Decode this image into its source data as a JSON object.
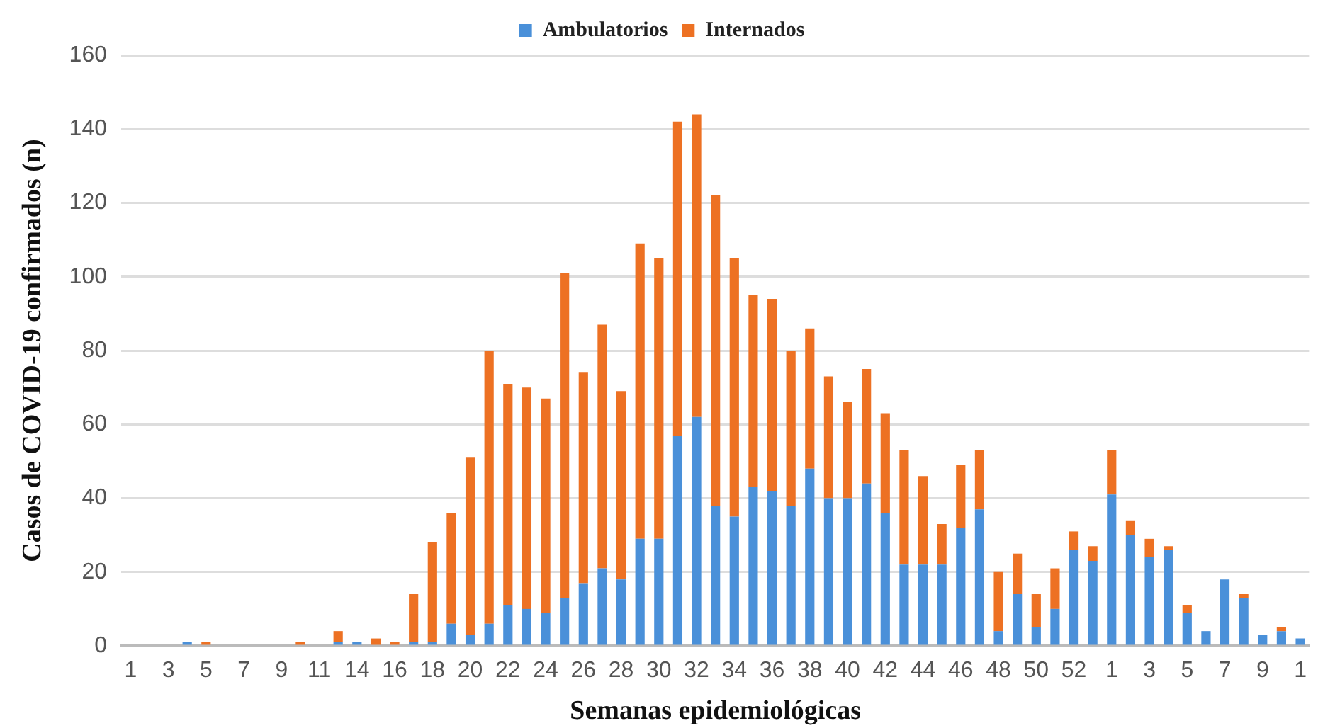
{
  "chart_data": {
    "type": "bar",
    "stacked": true,
    "xlabel": "Semanas epidemiológicas",
    "ylabel": "Casos de COVID-19 confirmados (n)",
    "categories": [
      "1",
      null,
      "3",
      null,
      "5",
      null,
      "7",
      null,
      "9",
      null,
      "11",
      null,
      "14",
      null,
      "16",
      null,
      "18",
      null,
      "20",
      null,
      "22",
      null,
      "24",
      null,
      "26",
      null,
      "28",
      null,
      "30",
      null,
      "32",
      null,
      "34",
      null,
      "36",
      null,
      "38",
      null,
      "40",
      null,
      "42",
      null,
      "44",
      null,
      "46",
      null,
      "48",
      null,
      "50",
      null,
      "52",
      null,
      "1",
      null,
      "3",
      null,
      "5",
      null,
      "7",
      null,
      "9",
      null,
      "1"
    ],
    "series": [
      {
        "name": "Ambulatorios",
        "color": "#4a90d9",
        "values": [
          0,
          0,
          0,
          1,
          0,
          0,
          0,
          0,
          0,
          0,
          0,
          1,
          1,
          0,
          0,
          1,
          1,
          6,
          3,
          6,
          11,
          10,
          9,
          13,
          17,
          21,
          18,
          29,
          29,
          57,
          62,
          38,
          35,
          43,
          42,
          38,
          48,
          40,
          40,
          44,
          36,
          22,
          22,
          22,
          32,
          37,
          4,
          14,
          5,
          10,
          26,
          23,
          41,
          30,
          24,
          26,
          9,
          4,
          18,
          13,
          3,
          4,
          2
        ]
      },
      {
        "name": "Internados",
        "color": "#ed7123",
        "values": [
          0,
          0,
          0,
          0,
          1,
          0,
          0,
          0,
          0,
          1,
          0,
          3,
          0,
          2,
          1,
          13,
          27,
          30,
          48,
          74,
          60,
          60,
          58,
          88,
          57,
          66,
          51,
          80,
          76,
          85,
          82,
          84,
          70,
          52,
          52,
          42,
          38,
          33,
          26,
          31,
          27,
          31,
          24,
          11,
          17,
          16,
          16,
          11,
          9,
          11,
          5,
          4,
          12,
          4,
          5,
          1,
          2,
          0,
          0,
          1,
          0,
          1,
          0
        ]
      }
    ],
    "ylim": [
      0,
      160
    ],
    "yticks": [
      0,
      20,
      40,
      60,
      80,
      100,
      120,
      140,
      160
    ],
    "grid": "y",
    "legend": "top"
  }
}
